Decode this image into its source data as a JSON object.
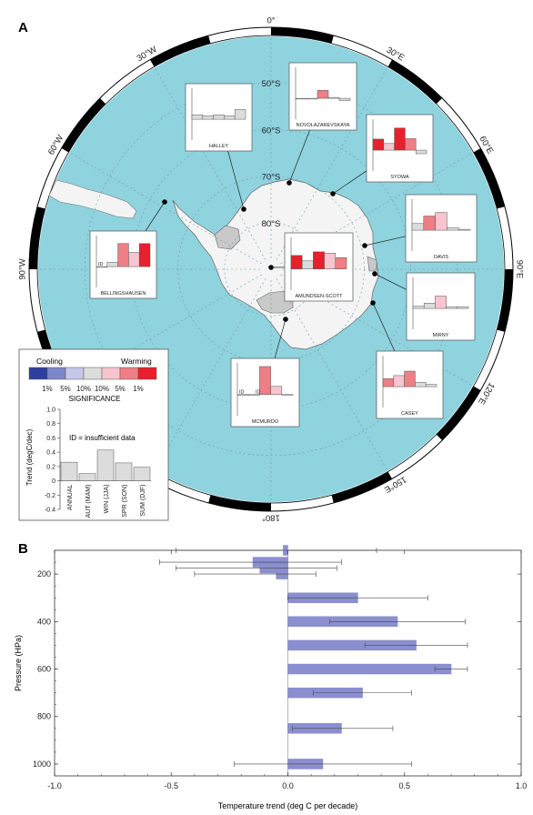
{
  "panel_labels": {
    "a": "A",
    "b": "B"
  },
  "map": {
    "longitude_labels": [
      {
        "deg": 0,
        "text": "0°"
      },
      {
        "deg": 30,
        "text": "30°E"
      },
      {
        "deg": 60,
        "text": "60°E"
      },
      {
        "deg": 90,
        "text": "90°E"
      },
      {
        "deg": 120,
        "text": "120°E"
      },
      {
        "deg": 150,
        "text": "150°E"
      },
      {
        "deg": 180,
        "text": "180°"
      },
      {
        "deg": -90,
        "text": "90°W"
      },
      {
        "deg": -60,
        "text": "60°W"
      },
      {
        "deg": -30,
        "text": "30°W"
      }
    ],
    "latitude_labels": [
      {
        "lat": -50,
        "text": "50°S"
      },
      {
        "lat": -60,
        "text": "60°S"
      },
      {
        "lat": -70,
        "text": "70°S"
      },
      {
        "lat": -80,
        "text": "80°S"
      }
    ],
    "colors": {
      "ocean": "#8fd3df",
      "land": "#f4f4f4",
      "ice_shelf": "#c9c9c9",
      "frame": "#000000"
    }
  },
  "legend": {
    "cooling_label": "Cooling",
    "warming_label": "Warming",
    "significance_title": "SIGNIFICANCE",
    "swatches": [
      {
        "color": "#2e3f9e",
        "label": "1%"
      },
      {
        "color": "#7d86c8",
        "label": "5%"
      },
      {
        "color": "#c4c7e6",
        "label": "10%"
      },
      {
        "color": "#dcdcdc",
        "label": "10%"
      },
      {
        "color": "#f7c4cf",
        "label": "5%"
      },
      {
        "color": "#ee7f85",
        "label": "1%"
      },
      {
        "color": "#e8202b",
        "label": ""
      }
    ],
    "example": {
      "ylabel": "Trend (degC/dec)",
      "ticks": [
        "1.0",
        "0.8",
        "0.6",
        "0.4",
        "0.2",
        "0",
        "-0.2",
        "-0.4"
      ],
      "note": "ID = insufficient data",
      "categories": [
        "ANNUAL",
        "AUT (MAM)",
        "WIN (JJA)",
        "SPR (SON)",
        "SUM (DJF)"
      ],
      "values": [
        0.26,
        0.1,
        0.43,
        0.25,
        0.19
      ]
    }
  },
  "stations": [
    {
      "name": "HALLEY",
      "values": [
        0.1,
        0.08,
        0.1,
        0.08,
        0.22
      ],
      "colors": [
        "#dcdcdc",
        "#dcdcdc",
        "#dcdcdc",
        "#dcdcdc",
        "#dcdcdc"
      ],
      "id_labels": []
    },
    {
      "name": "NOVOLAZAREVSKAYA",
      "values": [
        0.0,
        0.0,
        0.18,
        0.02,
        -0.05
      ],
      "colors": [
        "#dcdcdc",
        "#dcdcdc",
        "#ee7f85",
        "#dcdcdc",
        "#dcdcdc"
      ],
      "id_labels": []
    },
    {
      "name": "SYOWA",
      "values": [
        0.25,
        0.15,
        0.5,
        0.26,
        -0.08
      ],
      "colors": [
        "#e8202b",
        "#f7c4cf",
        "#e8202b",
        "#ee7f85",
        "#dcdcdc"
      ],
      "id_labels": []
    },
    {
      "name": "DAVIS",
      "values": [
        0.15,
        0.32,
        0.4,
        0.06,
        0.02
      ],
      "colors": [
        "#dcdcdc",
        "#ee7f85",
        "#f7c4cf",
        "#dcdcdc",
        "#dcdcdc"
      ],
      "id_labels": []
    },
    {
      "name": "BELLINGSHAUSEN",
      "values": [
        0.0,
        0.1,
        0.52,
        0.32,
        0.52
      ],
      "colors": [
        "#dcdcdc",
        "#dcdcdc",
        "#ee7f85",
        "#f7c4cf",
        "#e8202b"
      ],
      "id_labels": [
        "ID"
      ]
    },
    {
      "name": "AMUNDSEN-SCOTT",
      "values": [
        0.3,
        0.18,
        0.38,
        0.35,
        0.25
      ],
      "colors": [
        "#e8202b",
        "#dcdcdc",
        "#e8202b",
        "#f7c4cf",
        "#ee7f85"
      ],
      "id_labels": []
    },
    {
      "name": "MIRNY",
      "values": [
        0.05,
        0.12,
        0.28,
        0.04,
        0.04
      ],
      "colors": [
        "#dcdcdc",
        "#dcdcdc",
        "#f7c4cf",
        "#dcdcdc",
        "#dcdcdc"
      ],
      "id_labels": []
    },
    {
      "name": "CASEY",
      "values": [
        0.18,
        0.25,
        0.35,
        0.1,
        0.05
      ],
      "colors": [
        "#ee7f85",
        "#f7c4cf",
        "#ee7f85",
        "#dcdcdc",
        "#dcdcdc"
      ],
      "id_labels": []
    },
    {
      "name": "MCMURDO",
      "values": [
        0.0,
        0.0,
        0.62,
        0.18,
        0.0
      ],
      "colors": [
        "#dcdcdc",
        "#dcdcdc",
        "#ee7f85",
        "#f7c4cf",
        "#dcdcdc"
      ],
      "id_labels": [
        "ID",
        "ID"
      ]
    }
  ],
  "chart_data": {
    "type": "bar",
    "orientation": "horizontal",
    "xlabel": "Temperature trend (deg C per decade)",
    "ylabel": "Pressure (HPa)",
    "xlim": [
      -1.0,
      1.0
    ],
    "ylim": [
      1050,
      100
    ],
    "xticks": [
      "-1.0",
      "-0.5",
      "0.0",
      "0.5",
      "1.0"
    ],
    "yticks": [
      "200",
      "400",
      "600",
      "800",
      "1000"
    ],
    "bar_color": "#8b8fd0",
    "series": [
      {
        "pressure": [
          100,
          150,
          175,
          200,
          300,
          400,
          500,
          600,
          700,
          850,
          1000
        ],
        "trend": [
          -0.02,
          -0.15,
          -0.12,
          -0.05,
          0.3,
          0.47,
          0.55,
          0.7,
          0.32,
          0.23,
          0.15
        ],
        "ci_low": [
          -0.48,
          -0.55,
          -0.48,
          -0.4,
          0.0,
          0.18,
          0.33,
          0.63,
          0.11,
          0.02,
          -0.23
        ],
        "ci_high": [
          0.38,
          0.23,
          0.21,
          0.12,
          0.6,
          0.76,
          0.77,
          0.77,
          0.53,
          0.45,
          0.53
        ]
      }
    ]
  }
}
